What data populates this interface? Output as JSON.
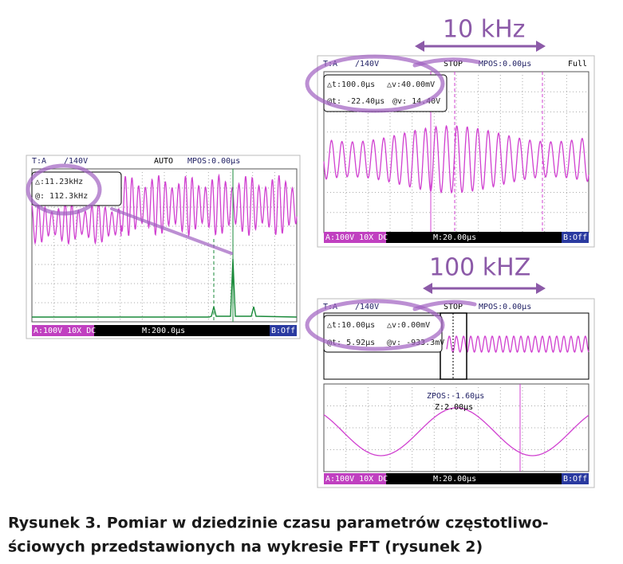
{
  "annotations": {
    "top_freq": "10 kHz",
    "bottom_freq": "100 kHZ"
  },
  "scopes": [
    {
      "header": {
        "source": "T:A",
        "level": "∕140V",
        "mode": "AUTO",
        "mpos": "MPOS:0.00µs"
      },
      "cursors": [
        "△:11.23kHz",
        "@: 112.3kHz"
      ],
      "footer": {
        "channel": "A:100V 10X DC",
        "timebase": "M:200.0µs",
        "channel_b": "B:Off"
      }
    },
    {
      "header": {
        "source": "T:A",
        "level": "∕140V",
        "mode": "STOP",
        "mpos": "MPOS:0.00µs",
        "memory": "Full"
      },
      "cursors": [
        "△t:100.0µs",
        "△v:40.00mV",
        "@t: -22.40µs",
        "@v: 14.40V"
      ],
      "footer": {
        "channel": "A:100V 10X DC",
        "timebase": "M:20.00µs",
        "channel_b": "B:Off"
      }
    },
    {
      "header": {
        "source": "T:A",
        "level": "∕140V",
        "mode": "STOP",
        "mpos": "MPOS:0.00µs"
      },
      "cursors": [
        "△t:10.00µs",
        "△v:0.00mV",
        "@t: 5.92µs",
        "@v: -933.3mV"
      ],
      "zoom": [
        "ZPOS:-1.60µs",
        "Z:2.00µs"
      ],
      "footer": {
        "channel": "A:100V 10X DC",
        "timebase": "M:20.00µs",
        "channel_b": "B:Off"
      }
    }
  ],
  "caption": [
    "Rysunek 3. Pomiar w dziedzinie czasu parametrów częstotliwo-",
    "ściowych przedstawionych na wykresie FFT (rysunek 2)"
  ]
}
